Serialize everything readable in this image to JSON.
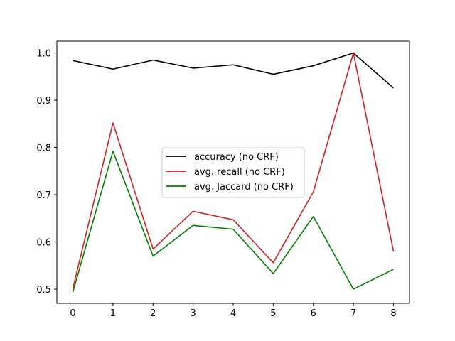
{
  "chart_data": {
    "type": "line",
    "title": "",
    "xlabel": "",
    "ylabel": "",
    "x": [
      0,
      1,
      2,
      3,
      4,
      5,
      6,
      7,
      8
    ],
    "xlim": [
      -0.4,
      8.4
    ],
    "ylim": [
      0.47,
      1.025
    ],
    "xticks": [
      0,
      1,
      2,
      3,
      4,
      5,
      6,
      7,
      8
    ],
    "yticks": [
      0.5,
      0.6,
      0.7,
      0.8,
      0.9,
      1.0
    ],
    "ytick_labels": [
      "0.5",
      "0.6",
      "0.7",
      "0.8",
      "0.9",
      "1.0"
    ],
    "grid": false,
    "legend_position": "center",
    "series": [
      {
        "name": "accuracy (no CRF)",
        "color": "#000000",
        "values": [
          0.984,
          0.966,
          0.985,
          0.968,
          0.975,
          0.955,
          0.973,
          1.0,
          0.926
        ]
      },
      {
        "name": "avg. recall (no CRF)",
        "color": "#d62020",
        "values": [
          0.502,
          0.852,
          0.585,
          0.665,
          0.647,
          0.556,
          0.706,
          1.0,
          0.58
        ]
      },
      {
        "name": "avg. Jaccard (no CRF)",
        "color": "#008000",
        "values": [
          0.494,
          0.792,
          0.57,
          0.635,
          0.627,
          0.533,
          0.654,
          0.5,
          0.542
        ]
      }
    ]
  }
}
